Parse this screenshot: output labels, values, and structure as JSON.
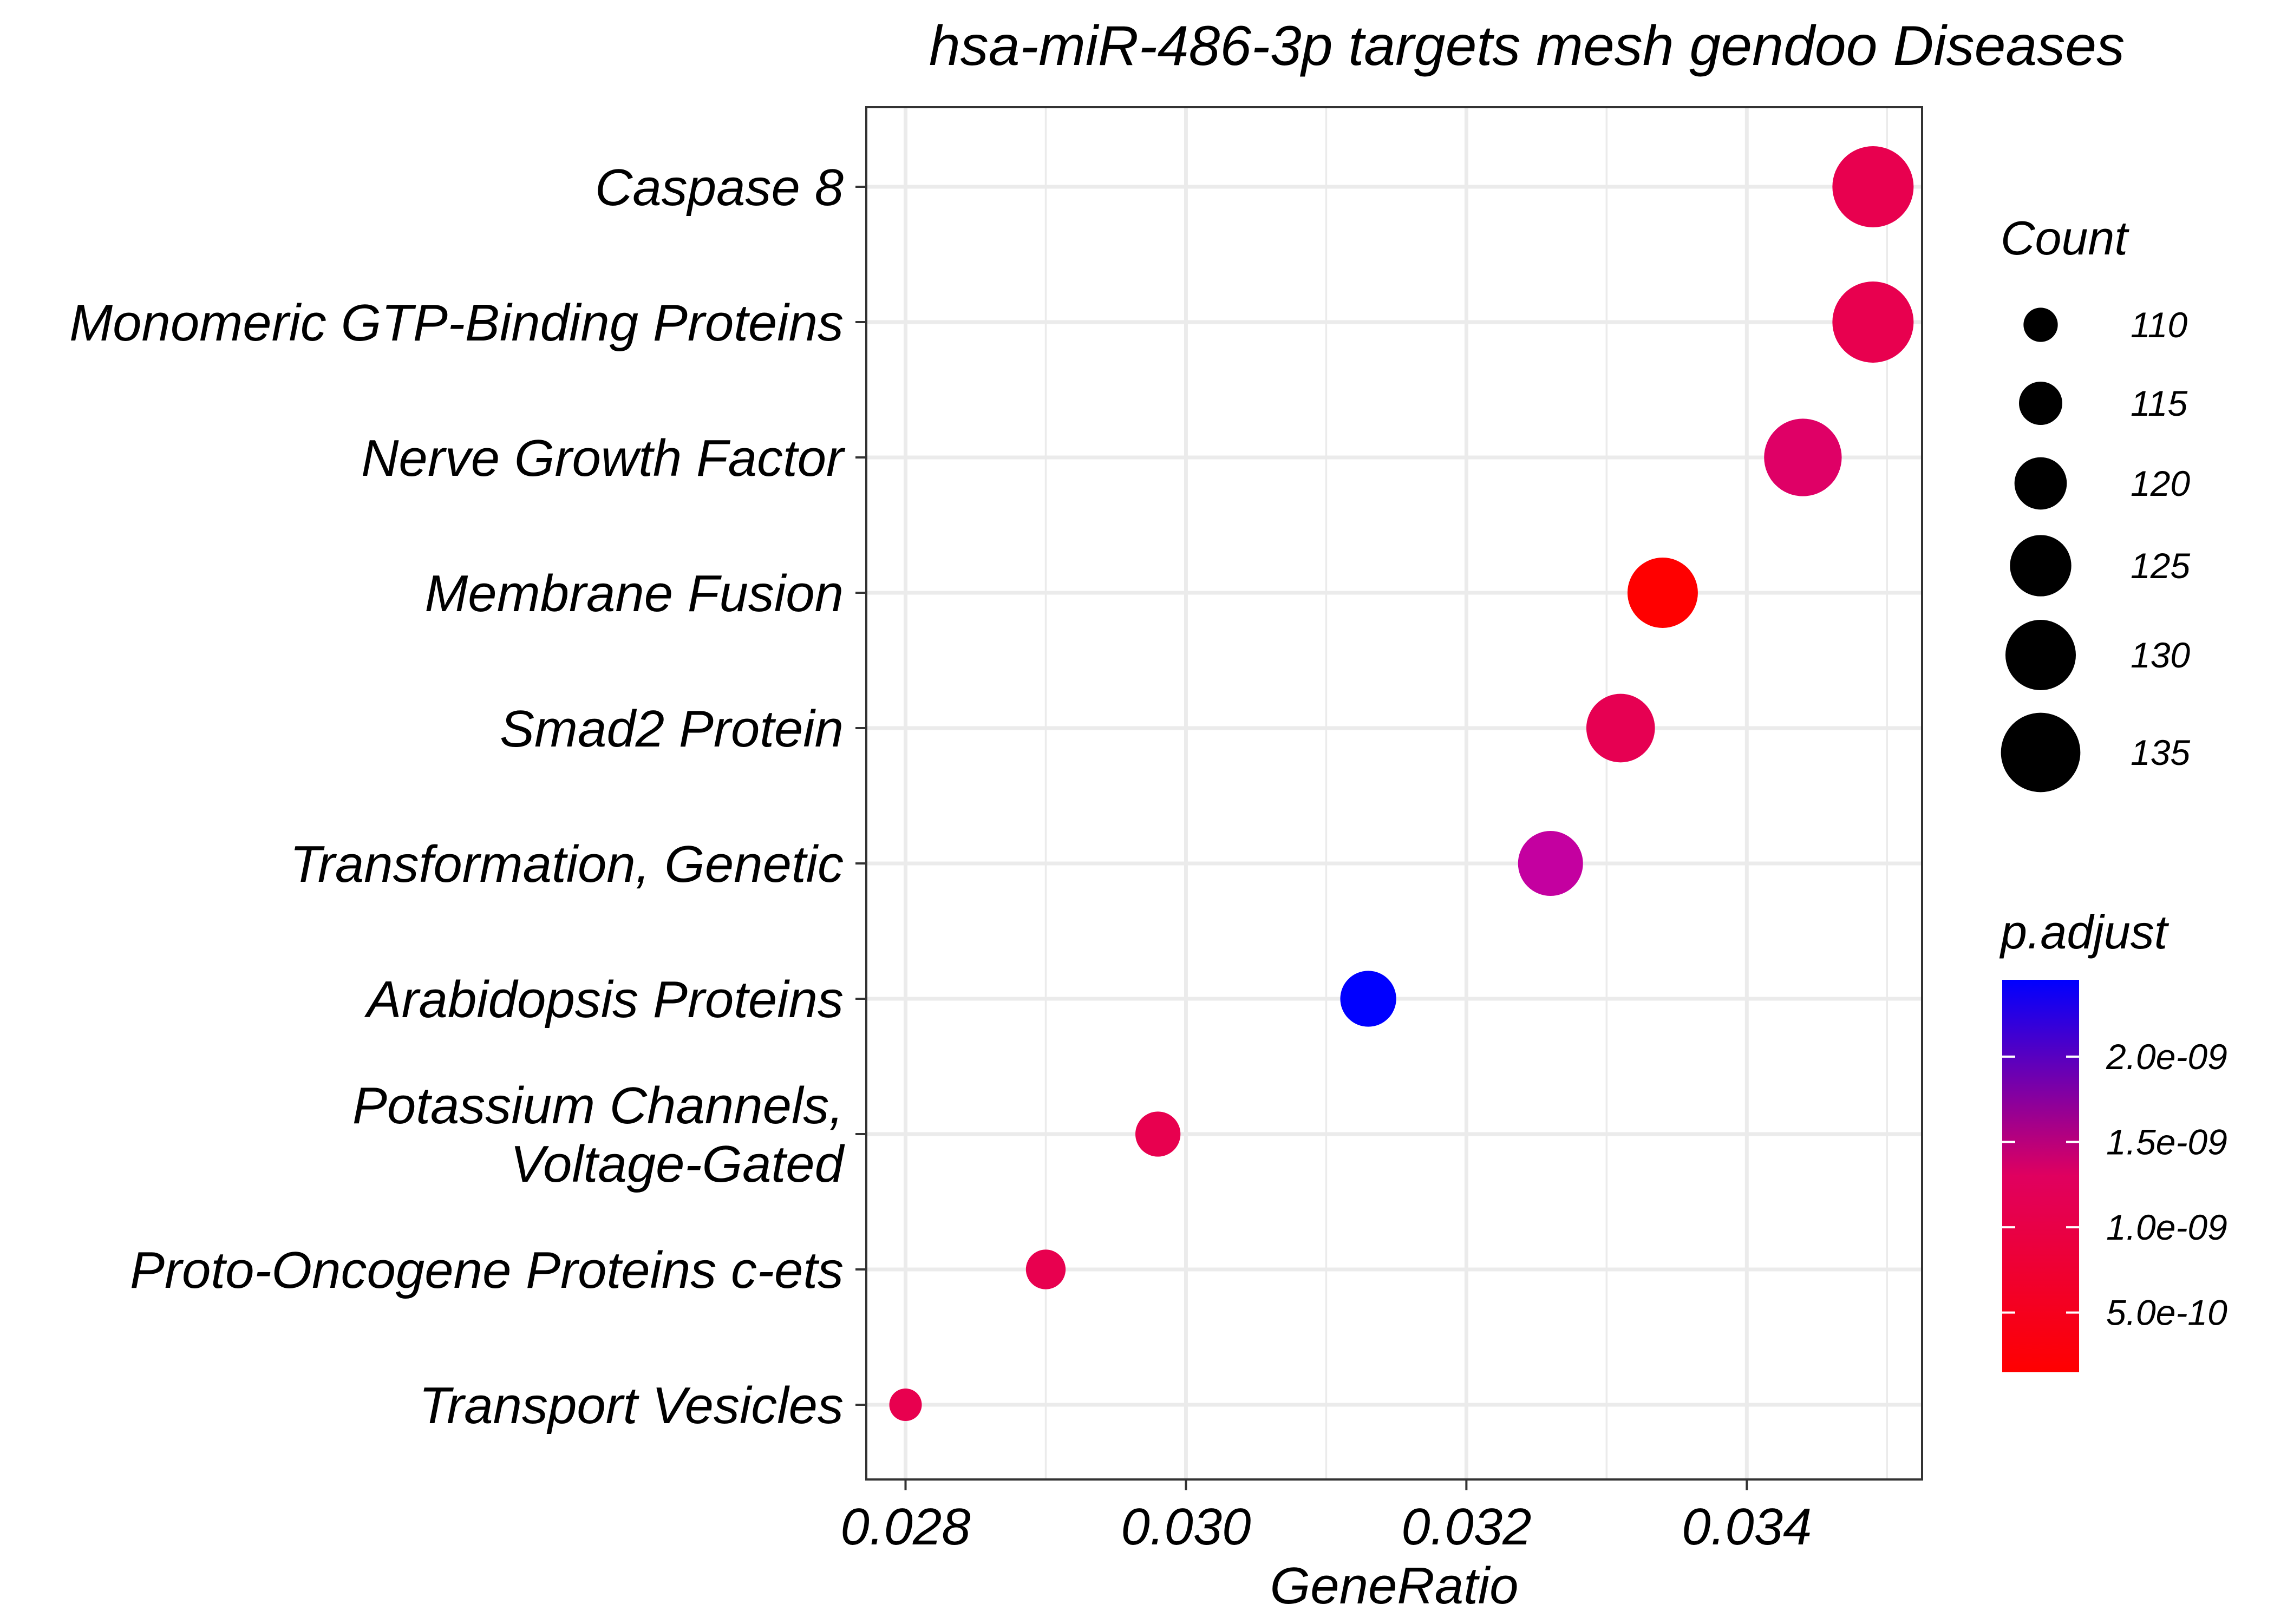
{
  "chart_data": {
    "type": "scatter",
    "title": "hsa-miR-486-3p targets mesh gendoo Diseases",
    "xlabel": "GeneRatio",
    "ylabel": "",
    "xlim": [
      0.02772,
      0.03525
    ],
    "x_ticks": [
      "0.028",
      "0.030",
      "0.032",
      "0.034"
    ],
    "x_tick_values": [
      0.028,
      0.03,
      0.032,
      0.034
    ],
    "grid": true,
    "categories": [
      "Caspase 8",
      "Monomeric GTP-Binding Proteins",
      "Nerve Growth Factor",
      "Membrane Fusion",
      "Smad2 Protein",
      "Transformation, Genetic",
      "Arabidopsis Proteins",
      "Potassium Channels,\nVoltage-Gated",
      "Proto-Oncogene Proteins c-ets",
      "Transport Vesicles"
    ],
    "points": [
      {
        "category": "Caspase 8",
        "x": 0.0349,
        "count": 136,
        "p_adjust": 8e-10,
        "color": "#e8004f"
      },
      {
        "category": "Monomeric GTP-Binding Proteins",
        "x": 0.0349,
        "count": 136,
        "p_adjust": 8e-10,
        "color": "#e8004f"
      },
      {
        "category": "Nerve Growth Factor",
        "x": 0.0344,
        "count": 134,
        "p_adjust": 1e-09,
        "color": "#df0066"
      },
      {
        "category": "Membrane Fusion",
        "x": 0.0334,
        "count": 130,
        "p_adjust": 1.5e-10,
        "color": "#ff0000"
      },
      {
        "category": "Smad2 Protein",
        "x": 0.0331,
        "count": 129,
        "p_adjust": 8e-10,
        "color": "#e60052"
      },
      {
        "category": "Transformation, Genetic",
        "x": 0.0326,
        "count": 127,
        "p_adjust": 1.6e-09,
        "color": "#c400a0"
      },
      {
        "category": "Arabidopsis Proteins",
        "x": 0.0313,
        "count": 122,
        "p_adjust": 2.4e-09,
        "color": "#0000ff"
      },
      {
        "category": "Potassium Channels,\nVoltage-Gated",
        "x": 0.0298,
        "count": 116,
        "p_adjust": 8e-10,
        "color": "#e8004f"
      },
      {
        "category": "Proto-Oncogene Proteins c-ets",
        "x": 0.029,
        "count": 113,
        "p_adjust": 8e-10,
        "color": "#e8004f"
      },
      {
        "category": "Transport Vesicles",
        "x": 0.028,
        "count": 109,
        "p_adjust": 8e-10,
        "color": "#e8004f"
      }
    ],
    "legend_size": {
      "title": "Count",
      "placement": "right",
      "entries": [
        {
          "label": "110",
          "value": 110
        },
        {
          "label": "115",
          "value": 115
        },
        {
          "label": "120",
          "value": 120
        },
        {
          "label": "125",
          "value": 125
        },
        {
          "label": "130",
          "value": 130
        },
        {
          "label": "135",
          "value": 135
        }
      ]
    },
    "legend_color": {
      "title": "p.adjust",
      "placement": "right",
      "low_color": "#ff0000",
      "high_color": "#0000ff",
      "range": [
        1.5e-10,
        2.45e-09
      ],
      "ticks": [
        {
          "label": "2.0e-09",
          "value": 2e-09
        },
        {
          "label": "1.5e-09",
          "value": 1.5e-09
        },
        {
          "label": "1.0e-09",
          "value": 1e-09
        },
        {
          "label": "5.0e-10",
          "value": 5e-10
        }
      ]
    }
  }
}
